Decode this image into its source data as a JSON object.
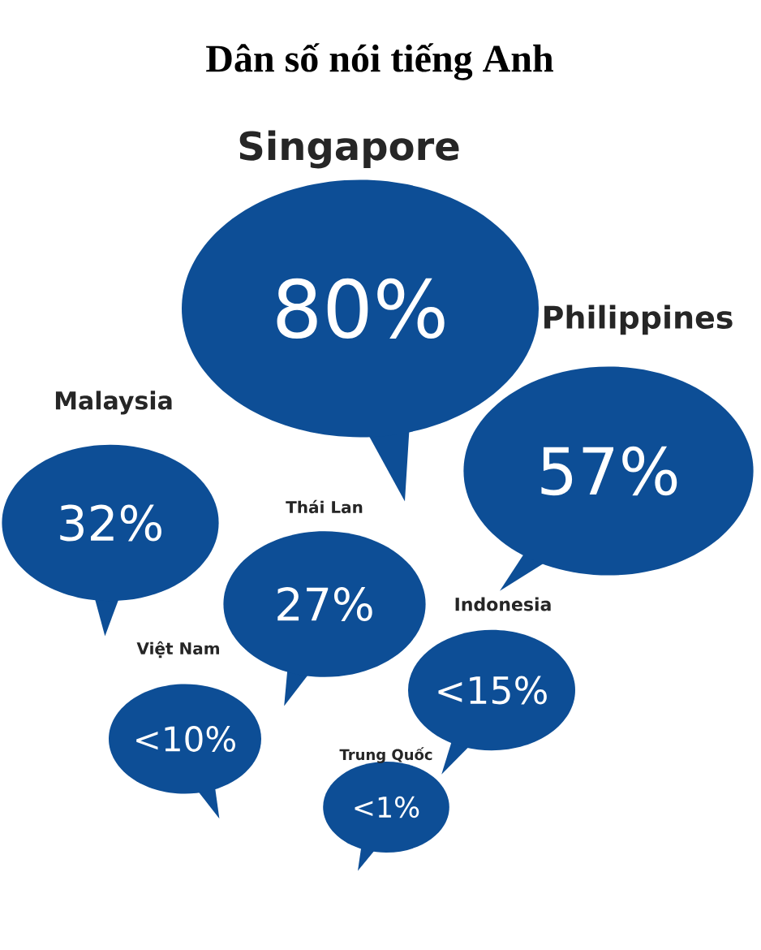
{
  "chart_data": {
    "type": "other",
    "title": "Dân số nói tiếng Anh",
    "categories": [
      "Singapore",
      "Philippines",
      "Malaysia",
      "Thái Lan",
      "Indonesia",
      "Việt Nam",
      "Trung Quốc"
    ],
    "values": [
      80,
      57,
      32,
      27,
      15,
      10,
      1
    ],
    "value_labels": [
      "80%",
      "57%",
      "32%",
      "27%",
      "<15%",
      "<10%",
      "<1%"
    ],
    "color": "#0d4e96"
  }
}
